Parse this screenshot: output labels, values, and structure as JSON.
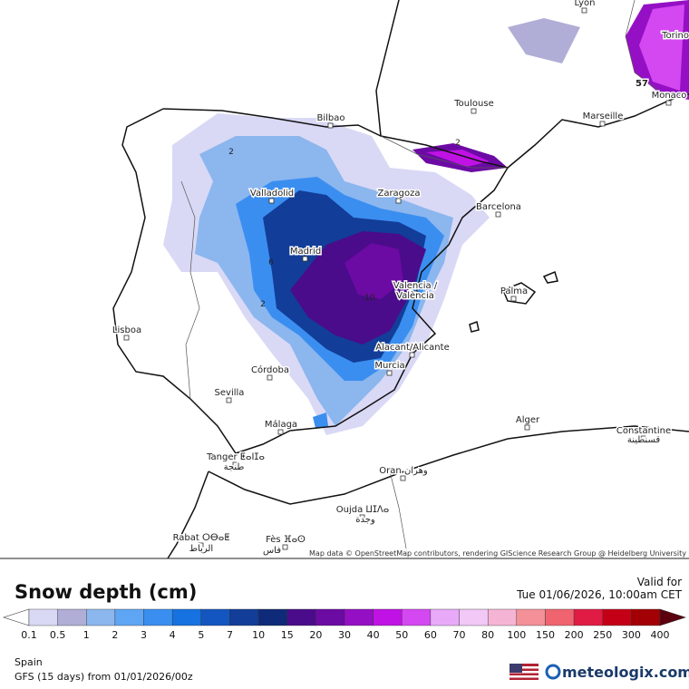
{
  "map": {
    "labels": [
      "Lyon",
      "Torino",
      "57",
      "Monaco",
      "Toulouse",
      "Marseille",
      "Bilbao",
      "Valladolid",
      "Zaragoza",
      "Barcelona",
      "Madrid",
      "Valencia /",
      "València",
      "Palma",
      "Lisboa",
      "Alacant/Alicante",
      "Murcia",
      "Córdoba",
      "Sevilla",
      "Málaga",
      "Alger",
      "Constantine",
      "قسنطينة",
      "Tanger ⵟⴰⵏⵊⴰ",
      "طنجة",
      "Oran وهران",
      "Oujda ⵡⵊⴷⴰ",
      "وجدة",
      "Rabat ⵔⴱⴰⵟ",
      "الرباط",
      "Fès ⴼⴰⵙ",
      "فاس"
    ],
    "contour_labels": [
      "2",
      "2",
      "6",
      "2",
      "10"
    ],
    "attribution": "Map data © OpenStreetMap contributors, rendering GIScience Research Group @ Heidelberg University"
  },
  "legend": {
    "title": "Snow depth (cm)",
    "valid_label": "Valid for",
    "valid_time": "Tue 01/06/2026, 10:00am CET",
    "ticks": [
      0.1,
      0.5,
      1,
      2,
      3,
      4,
      5,
      7,
      10,
      15,
      20,
      30,
      40,
      50,
      60,
      70,
      80,
      100,
      150,
      200,
      250,
      300,
      400
    ],
    "colors": [
      "#ffffff",
      "#d9d9f6",
      "#b0aed6",
      "#8cb6ee",
      "#5ea6f4",
      "#3a8ef0",
      "#1672e0",
      "#1456c0",
      "#123d98",
      "#0e2a78",
      "#4a0c8a",
      "#6c0aa4",
      "#9510c4",
      "#c012e4",
      "#d448f2",
      "#e8aaf8",
      "#f2c8f6",
      "#f6b4d4",
      "#f49098",
      "#f06470",
      "#e01c44",
      "#c40016",
      "#a20004",
      "#820010",
      "#5c0010"
    ]
  },
  "footer": {
    "region": "Spain",
    "model": "GFS (15 days) from 01/01/2026/00z",
    "brand": "meteologix.com"
  }
}
